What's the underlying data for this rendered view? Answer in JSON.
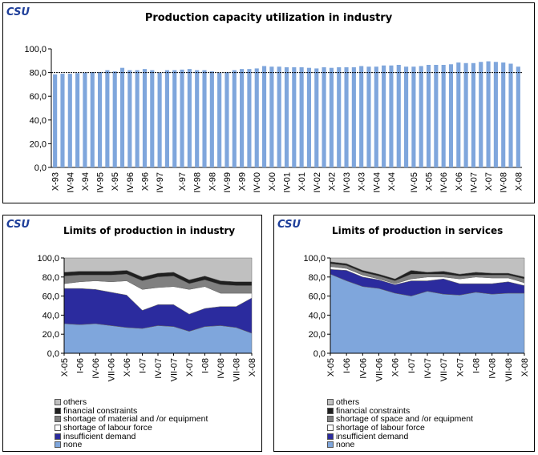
{
  "logo": "CSU",
  "colors": {
    "bar": "#7fa6dc",
    "none": "#7fa6dc",
    "insufficient_demand": "#2b2b9e",
    "shortage_labour": "#ffffff",
    "shortage_material": "#808080",
    "financial": "#202020",
    "others": "#c0c0c0"
  },
  "chart_data": [
    {
      "id": "utilization",
      "type": "bar",
      "title": "Production capacity utilization in industry",
      "ylim": [
        0,
        100
      ],
      "yticks": [
        "0,0",
        "20,0",
        "40,0",
        "60,0",
        "80,0",
        "100,0"
      ],
      "reference_line": 80,
      "xtick_labels": [
        "X-93",
        "IV-94",
        "X-94",
        "IV-95",
        "X-95",
        "IV-96",
        "X-96",
        "IV-97",
        "X-97",
        "IV-98",
        "X-98",
        "IV-99",
        "X-99",
        "IV-00",
        "X-00",
        "IV-01",
        "X-01",
        "IV-02",
        "X-02",
        "IV-03",
        "X-03",
        "IV-04",
        "X-04",
        "IV-05",
        "X-05",
        "IV-06",
        "X-06",
        "IV-07",
        "X-07",
        "IV-08",
        "X-08"
      ],
      "values": [
        78.5,
        79,
        79,
        79.5,
        80,
        80.5,
        80.5,
        82,
        81,
        84,
        82,
        82,
        83,
        82,
        80,
        82,
        82,
        82.5,
        83,
        82,
        82,
        81,
        80,
        80.5,
        82,
        83,
        83,
        83.5,
        85.5,
        85,
        85,
        84.5,
        84.5,
        84.5,
        84,
        83.5,
        84.5,
        84,
        84.5,
        84.5,
        84.5,
        85.5,
        85,
        85,
        86,
        86,
        86.5,
        85,
        85,
        85.5,
        86.5,
        86.5,
        86.5,
        87,
        88.5,
        88,
        88,
        89,
        89.5,
        89,
        88.5,
        87.5,
        85
      ]
    },
    {
      "id": "industry",
      "type": "area",
      "title": "Limits of production in industry",
      "ylim": [
        0,
        100
      ],
      "yticks": [
        "0,0",
        "20,0",
        "40,0",
        "60,0",
        "80,0",
        "100,0"
      ],
      "categories": [
        "X-05",
        "I-06",
        "IV-06",
        "VII-06",
        "X-06",
        "I-07",
        "IV-07",
        "VII-07",
        "X-07",
        "I-08",
        "IV-08",
        "VII-08",
        "X-08"
      ],
      "series": [
        {
          "name": "none",
          "values": [
            31,
            30,
            31,
            29,
            27,
            26,
            29,
            28,
            23,
            28,
            29,
            27,
            21
          ]
        },
        {
          "name": "insufficient demand",
          "values": [
            37,
            38,
            36,
            35,
            34,
            19,
            22,
            23,
            18,
            19,
            20,
            22,
            37
          ]
        },
        {
          "name": "shortage of labour force",
          "values": [
            5,
            7,
            9,
            11,
            15,
            22,
            18,
            19,
            26,
            23,
            14,
            14,
            5
          ]
        },
        {
          "name": "shortage of material and /or equipment",
          "values": [
            8,
            7,
            6,
            7,
            7,
            9,
            11,
            11,
            6,
            7,
            9,
            8,
            8
          ]
        },
        {
          "name": "financial constraints",
          "values": [
            4,
            4,
            4,
            4,
            4,
            4,
            4,
            4,
            4,
            4,
            4,
            4,
            4
          ]
        },
        {
          "name": "others",
          "values": [
            15,
            14,
            14,
            14,
            13,
            20,
            16,
            15,
            23,
            19,
            24,
            25,
            25
          ]
        }
      ],
      "legend": [
        "others",
        "financial constraints",
        "shortage of material and /or equipment",
        "shortage of labour force",
        "insufficient demand",
        "none"
      ]
    },
    {
      "id": "services",
      "type": "area",
      "title": "Limits of production in services",
      "ylim": [
        0,
        100
      ],
      "yticks": [
        "0,0",
        "20,0",
        "40,0",
        "60,0",
        "80,0",
        "100,0"
      ],
      "categories": [
        "X-05",
        "I-06",
        "IV-06",
        "VII-06",
        "X-06",
        "I-07",
        "IV-07",
        "VII-07",
        "X-07",
        "I-08",
        "IV-08",
        "VII-08",
        "X-08"
      ],
      "series": [
        {
          "name": "none",
          "values": [
            83,
            76,
            70,
            68,
            63,
            60,
            65,
            62,
            61,
            64,
            62,
            63,
            63
          ]
        },
        {
          "name": "insufficient demand",
          "values": [
            5,
            11,
            10,
            9,
            9,
            16,
            11,
            16,
            12,
            9,
            11,
            12,
            8
          ]
        },
        {
          "name": "shortage of labour force",
          "values": [
            3,
            2,
            2,
            1,
            1,
            2,
            4,
            2,
            5,
            7,
            6,
            4,
            3
          ]
        },
        {
          "name": "shortage of space and /or equipment",
          "values": [
            3,
            3,
            3,
            3,
            3,
            5,
            3,
            3,
            3,
            2,
            3,
            3,
            4
          ]
        },
        {
          "name": "financial constraints",
          "values": [
            2,
            2,
            2,
            2,
            2,
            4,
            2,
            3,
            2,
            3,
            2,
            2,
            2
          ]
        },
        {
          "name": "others",
          "values": [
            4,
            6,
            13,
            17,
            22,
            13,
            15,
            14,
            17,
            15,
            16,
            16,
            20
          ]
        }
      ],
      "legend": [
        "others",
        "financial constraints",
        "shortage of space and /or equipment",
        "shortage of labour force",
        "insufficient demand",
        "none"
      ]
    }
  ]
}
